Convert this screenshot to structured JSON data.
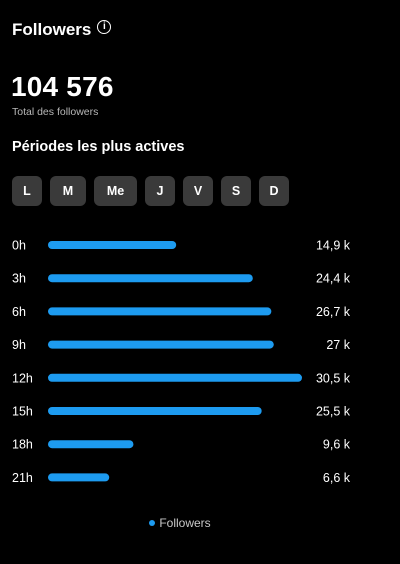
{
  "header": {
    "title": "Followers",
    "info_icon": "info-icon",
    "info_glyph": "i"
  },
  "total": {
    "value": "104 576",
    "label": "Total des followers"
  },
  "section_title": "Périodes les plus actives",
  "days": [
    "L",
    "M",
    "Me",
    "J",
    "V",
    "S",
    "D"
  ],
  "colors": {
    "bar": "#1d9bf0",
    "button_bg": "#3a3a3a",
    "background": "#000000"
  },
  "chart_data": {
    "type": "bar",
    "orientation": "horizontal",
    "categories": [
      "0h",
      "3h",
      "6h",
      "9h",
      "12h",
      "15h",
      "18h",
      "21h"
    ],
    "series": [
      {
        "name": "Followers",
        "values": [
          14900,
          24400,
          26700,
          27000,
          30500,
          25500,
          9600,
          6600
        ],
        "labels": [
          "14,9 k",
          "24,4 k",
          "26,7 k",
          "27 k",
          "30,5 k",
          "25,5 k",
          "9,6 k",
          "6,6 k"
        ]
      }
    ],
    "legend": "bottom-center",
    "grid": false
  }
}
